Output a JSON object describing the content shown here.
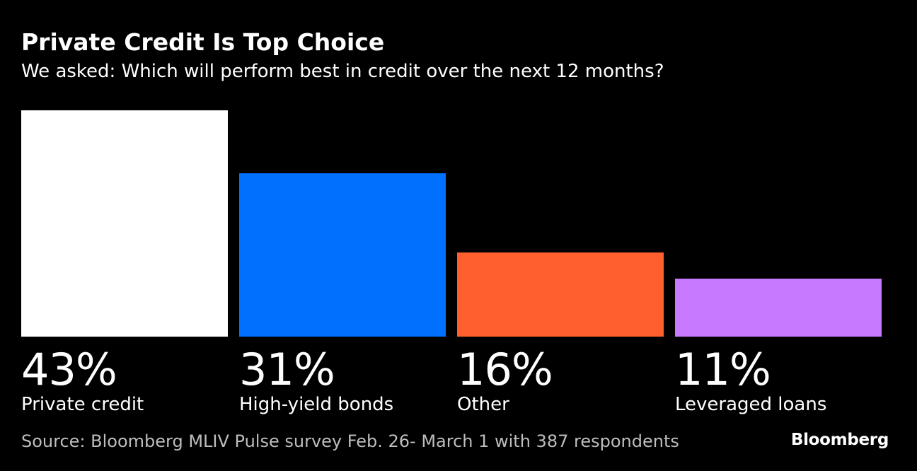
{
  "title": "Private Credit Is Top Choice",
  "subtitle": "We asked: Which will perform best in credit over the next 12 months?",
  "source": "Source: Bloomberg MLIV Pulse survey Feb. 26- March 1 with 387 respondents",
  "logo": "Bloomberg",
  "chart_data": {
    "type": "bar",
    "categories": [
      "Private credit",
      "High-yield bonds",
      "Other",
      "Leveraged loans"
    ],
    "values": [
      43,
      31,
      16,
      11
    ],
    "value_labels": [
      "43%",
      "31%",
      "16%",
      "11%"
    ],
    "colors": [
      "#ffffff",
      "#0070ff",
      "#ff5f2e",
      "#c779ff"
    ],
    "ylim": [
      0,
      43
    ],
    "grid": false,
    "legend": "none"
  }
}
